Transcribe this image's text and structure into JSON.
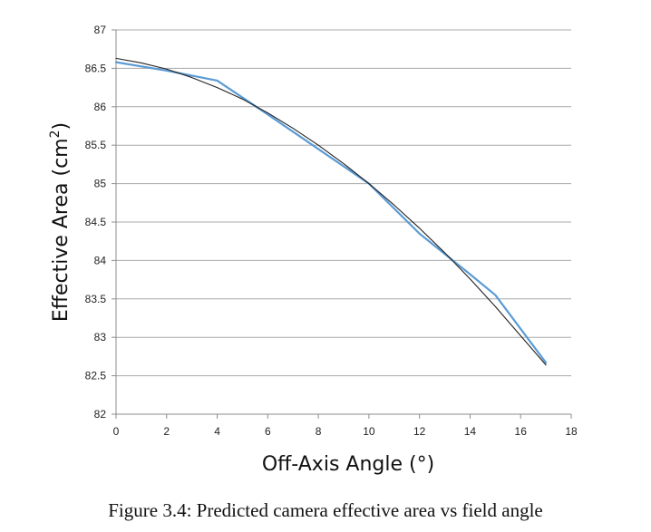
{
  "chart_data": {
    "type": "line",
    "title": "",
    "xlabel": "Off-Axis Angle (°)",
    "ylabel_main": "Effective Area (cm",
    "ylabel_sup": "2",
    "ylabel_end": ")",
    "xlim": [
      0,
      18
    ],
    "ylim": [
      82,
      87
    ],
    "x_ticks": [
      "0",
      "2",
      "4",
      "6",
      "8",
      "10",
      "12",
      "14",
      "16",
      "18"
    ],
    "y_ticks": [
      "82",
      "82.5",
      "83",
      "83.5",
      "84",
      "84.5",
      "85",
      "85.5",
      "86",
      "86.5",
      "87"
    ],
    "grid": true,
    "legend": "none",
    "series": [
      {
        "color": "#5b9bd5",
        "x": [
          0,
          2,
          4,
          6,
          8,
          10,
          12,
          14,
          15,
          17
        ],
        "y": [
          86.58,
          86.47,
          86.34,
          85.9,
          85.45,
          85.0,
          84.35,
          83.82,
          83.55,
          82.67
        ]
      },
      {
        "color": "#222222",
        "x": [
          0,
          1,
          2,
          3,
          4,
          5,
          6,
          7,
          8,
          9,
          10,
          11,
          12,
          13,
          14,
          15,
          16,
          17
        ],
        "y": [
          86.63,
          86.57,
          86.49,
          86.38,
          86.25,
          86.1,
          85.92,
          85.72,
          85.5,
          85.26,
          85.0,
          84.72,
          84.42,
          84.1,
          83.76,
          83.4,
          83.02,
          82.64
        ]
      }
    ]
  },
  "caption": "Figure 3.4: Predicted camera effective area vs field angle"
}
